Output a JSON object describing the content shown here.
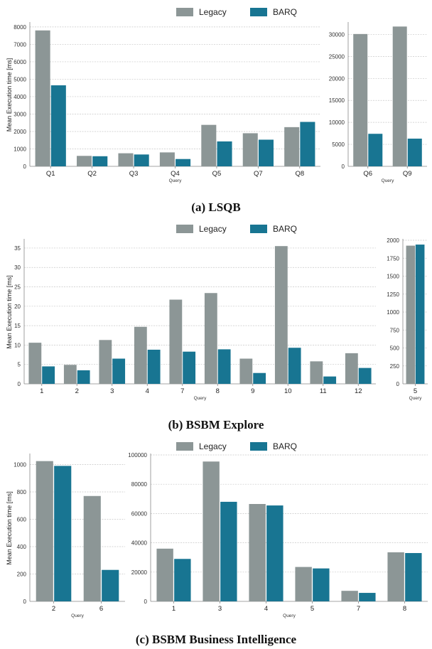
{
  "colors": {
    "Legacy": "#8c9696",
    "BARQ": "#187592",
    "grid": "#c8c8c8",
    "axis": "#888888"
  },
  "legend": {
    "items": [
      "Legacy",
      "BARQ"
    ]
  },
  "captions": {
    "a": "(a) LSQB",
    "b": "(b) BSBM Explore",
    "c": "(c) BSBM Business Intelligence"
  },
  "chart_data": [
    {
      "id": "a-left",
      "type": "bar",
      "categories": [
        "Q1",
        "Q2",
        "Q3",
        "Q4",
        "Q5",
        "Q7",
        "Q8"
      ],
      "series": [
        {
          "name": "Legacy",
          "values": [
            7800,
            600,
            750,
            800,
            2380,
            1900,
            2250
          ]
        },
        {
          "name": "BARQ",
          "values": [
            4650,
            580,
            680,
            420,
            1430,
            1530,
            2550
          ]
        }
      ],
      "xlabel": "Query",
      "ylabel": "Mean Execution time [ms]",
      "ylim": [
        0,
        8200
      ],
      "yticks": [
        0,
        1000,
        2000,
        3000,
        4000,
        5000,
        6000,
        7000,
        8000
      ]
    },
    {
      "id": "a-right",
      "type": "bar",
      "categories": [
        "Q6",
        "Q9"
      ],
      "series": [
        {
          "name": "Legacy",
          "values": [
            30100,
            31800
          ]
        },
        {
          "name": "BARQ",
          "values": [
            7400,
            6300
          ]
        }
      ],
      "xlabel": "Query",
      "ylabel": "",
      "ylim": [
        0,
        32500
      ],
      "yticks": [
        0,
        5000,
        10000,
        15000,
        20000,
        25000,
        30000
      ]
    },
    {
      "id": "b-left",
      "type": "bar",
      "categories": [
        "1",
        "2",
        "3",
        "4",
        "7",
        "8",
        "9",
        "10",
        "11",
        "12"
      ],
      "series": [
        {
          "name": "Legacy",
          "values": [
            10.6,
            4.9,
            11.3,
            14.7,
            21.7,
            23.4,
            6.5,
            35.5,
            5.8,
            7.9
          ]
        },
        {
          "name": "BARQ",
          "values": [
            4.5,
            3.5,
            6.5,
            8.8,
            8.3,
            8.9,
            2.8,
            9.3,
            1.9,
            4.1
          ]
        }
      ],
      "xlabel": "Query",
      "ylabel": "Mean Execution time [ms]",
      "ylim": [
        0,
        37
      ],
      "yticks": [
        0,
        5,
        10,
        15,
        20,
        25,
        30,
        35
      ]
    },
    {
      "id": "b-right",
      "type": "bar",
      "categories": [
        "5"
      ],
      "series": [
        {
          "name": "Legacy",
          "values": [
            1925
          ]
        },
        {
          "name": "BARQ",
          "values": [
            1940
          ]
        }
      ],
      "xlabel": "Query",
      "ylabel": "",
      "ylim": [
        0,
        2000
      ],
      "yticks": [
        0,
        250,
        500,
        750,
        1000,
        1250,
        1500,
        1750,
        2000
      ]
    },
    {
      "id": "c-left",
      "type": "bar",
      "categories": [
        "2",
        "6"
      ],
      "series": [
        {
          "name": "Legacy",
          "values": [
            1025,
            770
          ]
        },
        {
          "name": "BARQ",
          "values": [
            990,
            230
          ]
        }
      ],
      "xlabel": "Query",
      "ylabel": "Mean Execution time [ms]",
      "ylim": [
        0,
        1070
      ],
      "yticks": [
        0,
        200,
        400,
        600,
        800,
        1000
      ]
    },
    {
      "id": "c-right",
      "type": "bar",
      "categories": [
        "1",
        "3",
        "4",
        "5",
        "7",
        "8"
      ],
      "series": [
        {
          "name": "Legacy",
          "values": [
            36000,
            95500,
            66500,
            23500,
            7200,
            33500
          ]
        },
        {
          "name": "BARQ",
          "values": [
            29000,
            68000,
            65500,
            22500,
            5800,
            33000
          ]
        }
      ],
      "xlabel": "Query",
      "ylabel": "",
      "ylim": [
        0,
        100000
      ],
      "yticks": [
        0,
        20000,
        40000,
        60000,
        80000,
        100000
      ]
    }
  ]
}
